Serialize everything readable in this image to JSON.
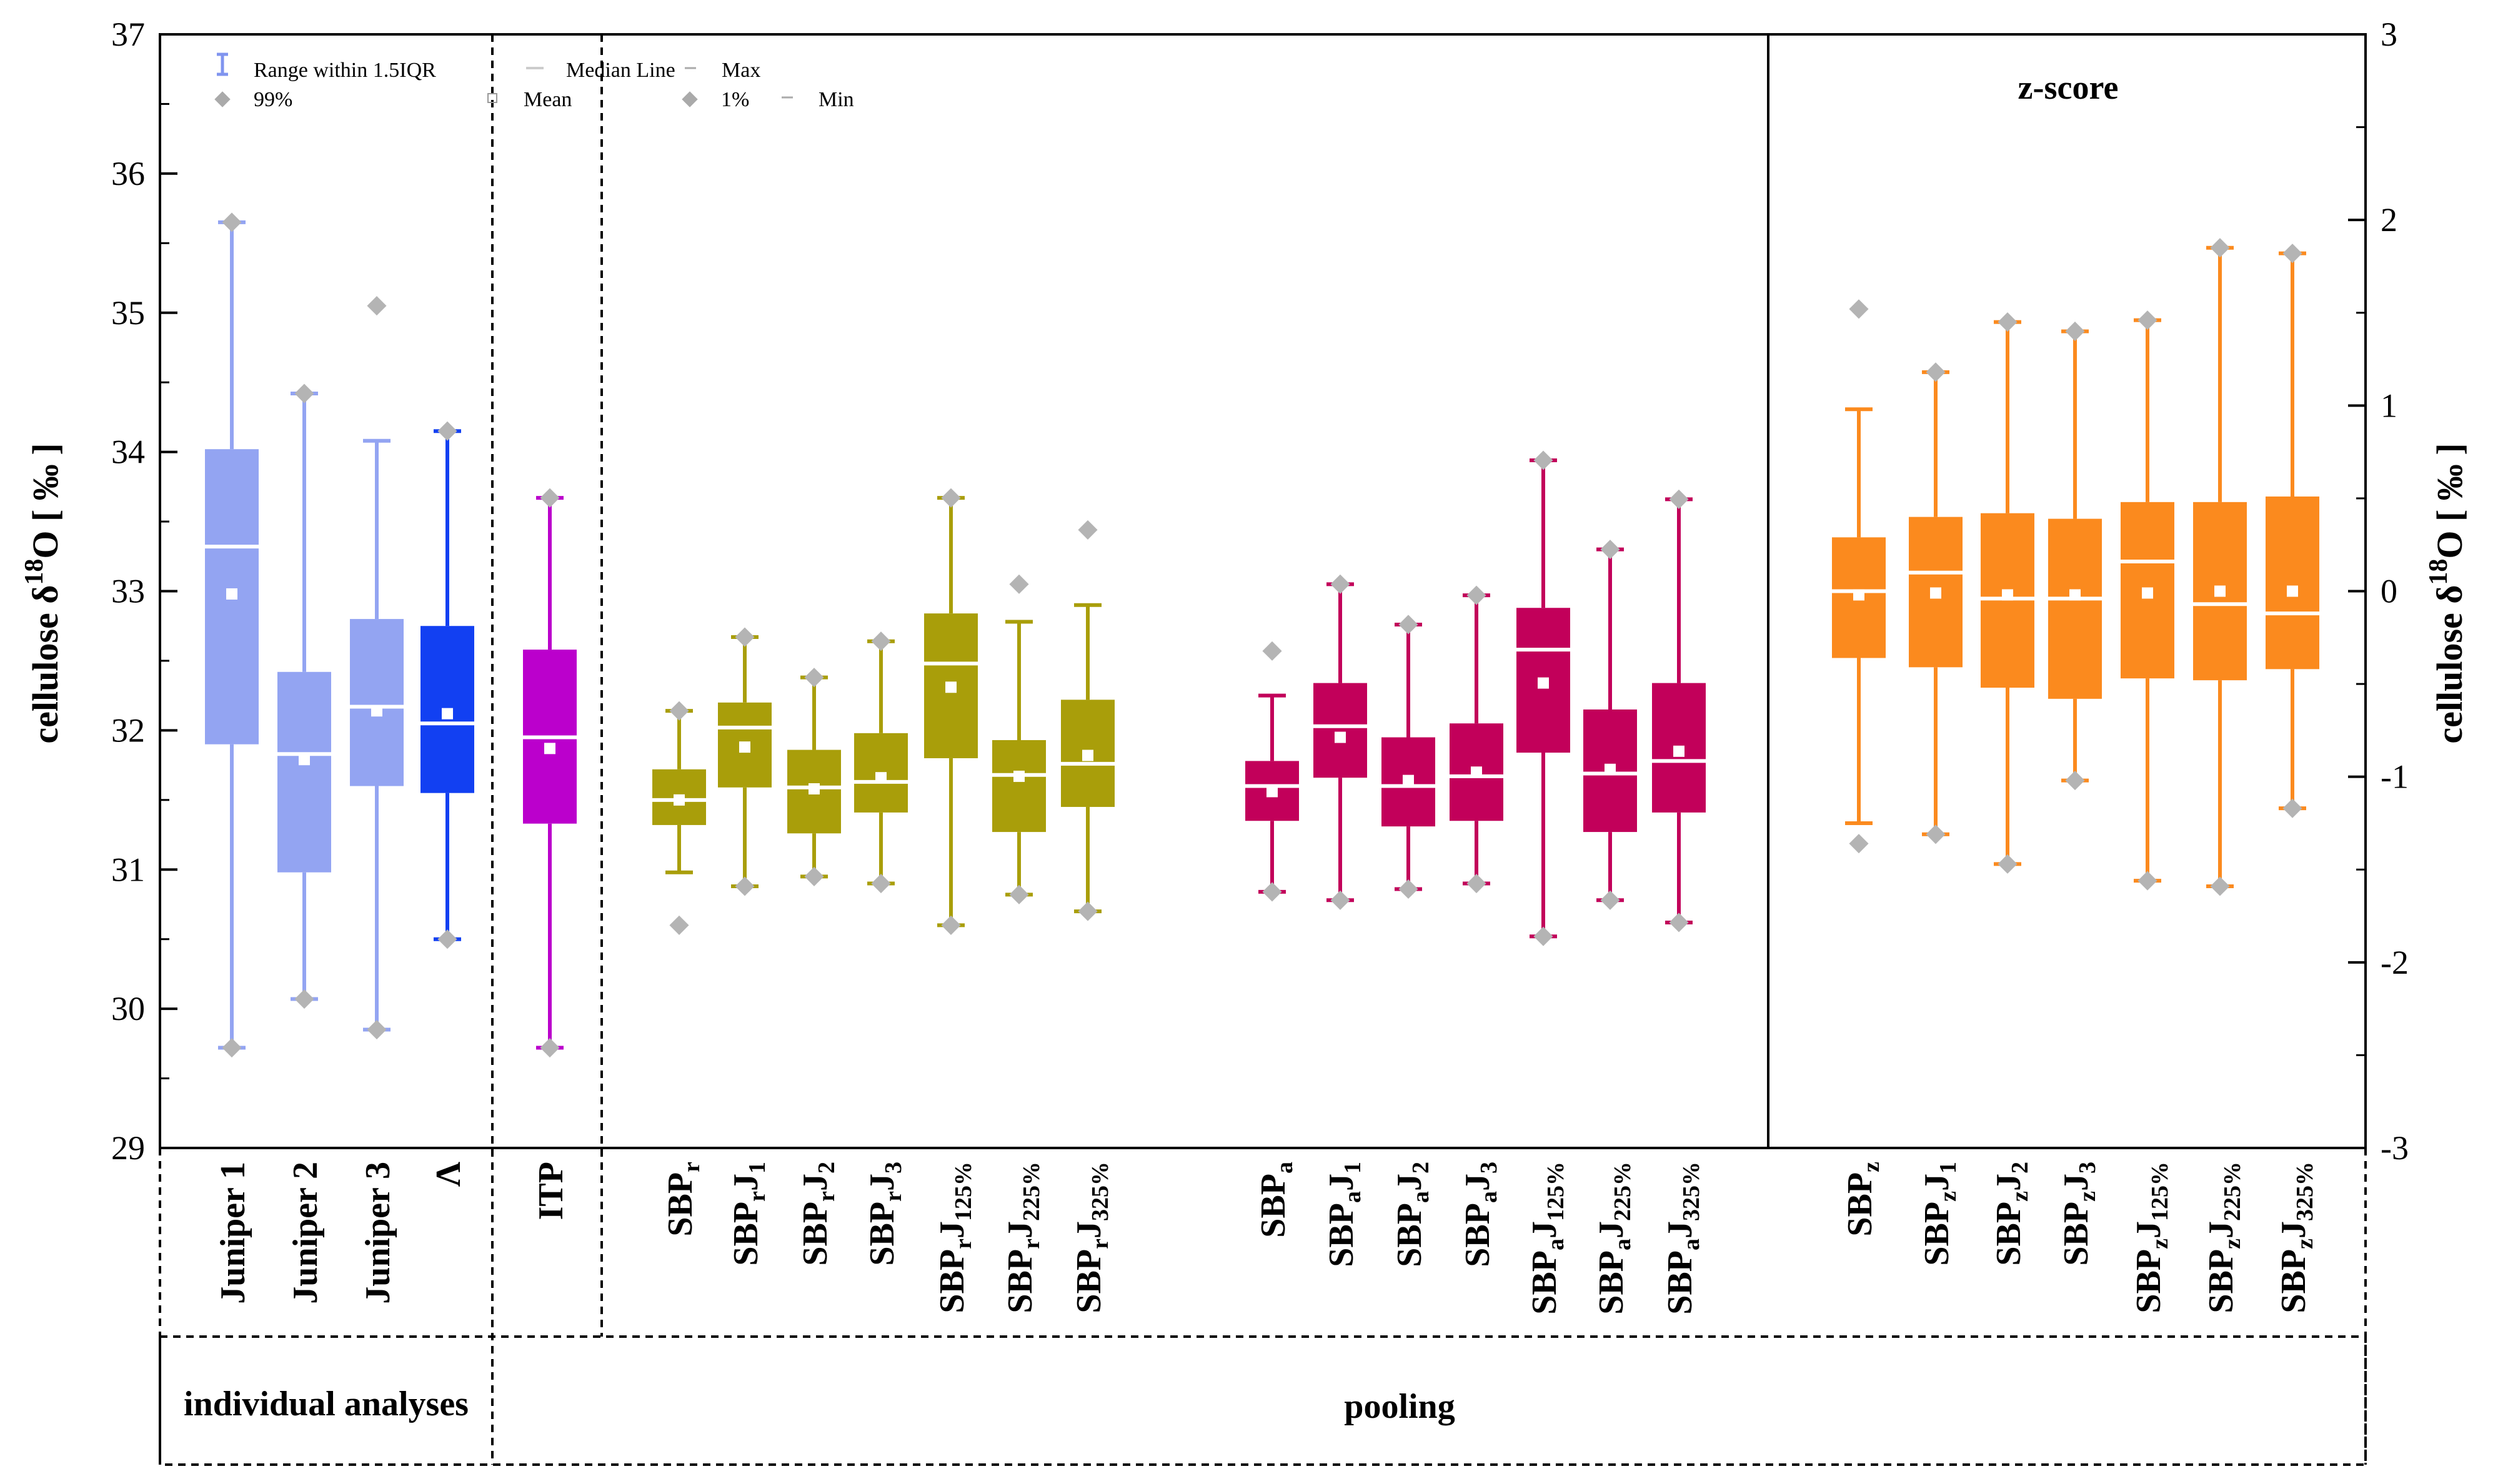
{
  "chart_data": {
    "type": "box",
    "title": "",
    "ylabel_left": {
      "main": "cellulose δ",
      "sup": "18",
      "tail": "O  [ ‰ ]"
    },
    "ylabel_right": {
      "main": "cellulose δ",
      "sup": "18",
      "tail": "O  [ ‰ ]"
    },
    "left_axis": {
      "ylim": [
        29,
        37
      ],
      "ticks": [
        "29",
        "30",
        "31",
        "32",
        "33",
        "34",
        "35",
        "36",
        "37"
      ]
    },
    "right_axis": {
      "ylim": [
        -3,
        3
      ],
      "ticks": [
        "-3",
        "-2",
        "-1",
        "0",
        "1",
        "2",
        "3"
      ]
    },
    "legend": [
      {
        "label": "Range within 1.5IQR",
        "symbol": "whisker"
      },
      {
        "label": "99%",
        "symbol": "diamond"
      },
      {
        "label": "Median Line",
        "symbol": "line"
      },
      {
        "label": "Mean",
        "symbol": "square"
      },
      {
        "label": "Max",
        "symbol": "dash"
      },
      {
        "label": "1%",
        "symbol": "diamond"
      },
      {
        "label": "Min",
        "symbol": "dash"
      }
    ],
    "panel_title": "z-score",
    "group_labels": {
      "individual": "individual analyses",
      "pooling": "pooling"
    },
    "series": [
      {
        "label": "Juniper 1",
        "color": "#93a4f2",
        "axis": "left",
        "q1": 31.9,
        "q3": 34.02,
        "median": 33.32,
        "mean": 32.98,
        "min": 29.72,
        "max": 35.65,
        "p1": 29.72,
        "p99": 35.65
      },
      {
        "label": "Juniper 2",
        "color": "#93a4f2",
        "axis": "left",
        "q1": 30.98,
        "q3": 32.42,
        "median": 31.83,
        "mean": 31.79,
        "min": 30.07,
        "max": 34.42,
        "p1": 30.07,
        "p99": 34.42
      },
      {
        "label": "Juniper 3",
        "color": "#93a4f2",
        "axis": "left",
        "q1": 31.6,
        "q3": 32.8,
        "median": 32.17,
        "mean": 32.14,
        "min": 29.85,
        "max": 34.08,
        "p1": 29.85,
        "p99": 35.05
      },
      {
        "label": "Λ",
        "color": "#1240f2",
        "axis": "left",
        "q1": 31.55,
        "q3": 32.75,
        "median": 32.05,
        "mean": 32.12,
        "min": 30.5,
        "max": 34.15,
        "p1": 30.5,
        "p99": 34.15
      },
      {
        "label": "ITP",
        "color": "#bb00cc",
        "axis": "left",
        "q1": 31.33,
        "q3": 32.58,
        "median": 31.95,
        "mean": 31.87,
        "min": 29.72,
        "max": 33.67,
        "p1": 29.72,
        "p99": 33.67
      },
      {
        "label": "SBPr",
        "sub": [
          "r"
        ],
        "color": "#a99e0a",
        "axis": "left",
        "q1": 31.32,
        "q3": 31.72,
        "median": 31.5,
        "mean": 31.5,
        "min": 30.98,
        "max": 32.14,
        "p1": 30.6,
        "p99": 32.14
      },
      {
        "label": "SBPrJ1",
        "sub": [
          "r",
          "1"
        ],
        "color": "#a99e0a",
        "axis": "left",
        "q1": 31.59,
        "q3": 32.2,
        "median": 32.02,
        "mean": 31.88,
        "min": 30.88,
        "max": 32.67,
        "p1": 30.88,
        "p99": 32.67
      },
      {
        "label": "SBPrJ2",
        "sub": [
          "r",
          "2"
        ],
        "color": "#a99e0a",
        "axis": "left",
        "q1": 31.26,
        "q3": 31.86,
        "median": 31.59,
        "mean": 31.58,
        "min": 30.95,
        "max": 32.38,
        "p1": 30.95,
        "p99": 32.38
      },
      {
        "label": "SBPrJ3",
        "sub": [
          "r",
          "3"
        ],
        "color": "#a99e0a",
        "axis": "left",
        "q1": 31.41,
        "q3": 31.98,
        "median": 31.63,
        "mean": 31.66,
        "min": 30.9,
        "max": 32.64,
        "p1": 30.9,
        "p99": 32.64
      },
      {
        "label": "SBPrJ125%",
        "sub": [
          "r",
          "125%"
        ],
        "color": "#a99e0a",
        "axis": "left",
        "q1": 31.8,
        "q3": 32.84,
        "median": 32.48,
        "mean": 32.31,
        "min": 30.6,
        "max": 33.67,
        "p1": 30.6,
        "p99": 33.67
      },
      {
        "label": "SBPrJ225%",
        "sub": [
          "r",
          "225%"
        ],
        "color": "#a99e0a",
        "axis": "left",
        "q1": 31.27,
        "q3": 31.93,
        "median": 31.68,
        "mean": 31.67,
        "min": 30.82,
        "max": 32.78,
        "p1": 30.82,
        "p99": 33.05
      },
      {
        "label": "SBPrJ325%",
        "sub": [
          "r",
          "325%"
        ],
        "color": "#a99e0a",
        "axis": "left",
        "q1": 31.45,
        "q3": 32.22,
        "median": 31.76,
        "mean": 31.82,
        "min": 30.7,
        "max": 32.9,
        "p1": 30.7,
        "p99": 33.44
      },
      {
        "label": "SBPa",
        "sub": [
          "a"
        ],
        "color": "#c2005a",
        "axis": "left",
        "q1": 31.35,
        "q3": 31.78,
        "median": 31.6,
        "mean": 31.56,
        "min": 30.84,
        "max": 32.25,
        "p1": 30.84,
        "p99": 32.57
      },
      {
        "label": "SBPaJ1",
        "sub": [
          "a",
          "1"
        ],
        "color": "#c2005a",
        "axis": "left",
        "q1": 31.66,
        "q3": 32.34,
        "median": 32.03,
        "mean": 31.95,
        "min": 30.78,
        "max": 33.05,
        "p1": 30.78,
        "p99": 33.05
      },
      {
        "label": "SBPaJ2",
        "sub": [
          "a",
          "2"
        ],
        "color": "#c2005a",
        "axis": "left",
        "q1": 31.31,
        "q3": 31.95,
        "median": 31.6,
        "mean": 31.64,
        "min": 30.86,
        "max": 32.76,
        "p1": 30.86,
        "p99": 32.76
      },
      {
        "label": "SBPaJ3",
        "sub": [
          "a",
          "3"
        ],
        "color": "#c2005a",
        "axis": "left",
        "q1": 31.35,
        "q3": 32.05,
        "median": 31.67,
        "mean": 31.7,
        "min": 30.9,
        "max": 32.97,
        "p1": 30.9,
        "p99": 32.97
      },
      {
        "label": "SBPaJ125%",
        "sub": [
          "a",
          "125%"
        ],
        "color": "#c2005a",
        "axis": "left",
        "q1": 31.84,
        "q3": 32.88,
        "median": 32.58,
        "mean": 32.34,
        "min": 30.52,
        "max": 33.94,
        "p1": 30.52,
        "p99": 33.94
      },
      {
        "label": "SBPaJ225%",
        "sub": [
          "a",
          "225%"
        ],
        "color": "#c2005a",
        "axis": "left",
        "q1": 31.27,
        "q3": 32.15,
        "median": 31.69,
        "mean": 31.72,
        "min": 30.78,
        "max": 33.3,
        "p1": 30.78,
        "p99": 33.3
      },
      {
        "label": "SBPaJ325%",
        "sub": [
          "a",
          "325%"
        ],
        "color": "#c2005a",
        "axis": "left",
        "q1": 31.41,
        "q3": 32.34,
        "median": 31.78,
        "mean": 31.85,
        "min": 30.62,
        "max": 33.66,
        "p1": 30.62,
        "p99": 33.66
      },
      {
        "label": "SBPz",
        "sub": [
          "z"
        ],
        "color": "#fb8a1e",
        "axis": "right",
        "q1": -0.36,
        "q3": 0.29,
        "median": 0.0,
        "mean": -0.02,
        "min": -1.25,
        "max": 0.98,
        "p1": -1.36,
        "p99": 1.52
      },
      {
        "label": "SBPzJ1",
        "sub": [
          "z",
          "1"
        ],
        "color": "#fb8a1e",
        "axis": "right",
        "q1": -0.41,
        "q3": 0.4,
        "median": 0.1,
        "mean": -0.01,
        "min": -1.31,
        "max": 1.18,
        "p1": -1.31,
        "p99": 1.18
      },
      {
        "label": "SBPzJ2",
        "sub": [
          "z",
          "2"
        ],
        "color": "#fb8a1e",
        "axis": "right",
        "q1": -0.52,
        "q3": 0.42,
        "median": -0.04,
        "mean": -0.02,
        "min": -1.47,
        "max": 1.45,
        "p1": -1.47,
        "p99": 1.45
      },
      {
        "label": "SBPzJ3",
        "sub": [
          "z",
          "3"
        ],
        "color": "#fb8a1e",
        "axis": "right",
        "q1": -0.58,
        "q3": 0.39,
        "median": -0.04,
        "mean": -0.02,
        "min": -1.02,
        "max": 1.4,
        "p1": -1.02,
        "p99": 1.4
      },
      {
        "label": "SBPzJ125%",
        "sub": [
          "z",
          "125%"
        ],
        "color": "#fb8a1e",
        "axis": "right",
        "q1": -0.47,
        "q3": 0.48,
        "median": 0.16,
        "mean": -0.01,
        "min": -1.56,
        "max": 1.46,
        "p1": -1.56,
        "p99": 1.46
      },
      {
        "label": "SBPzJ225%",
        "sub": [
          "z",
          "225%"
        ],
        "color": "#fb8a1e",
        "axis": "right",
        "q1": -0.48,
        "q3": 0.48,
        "median": -0.07,
        "mean": 0.0,
        "min": -1.59,
        "max": 1.85,
        "p1": -1.59,
        "p99": 1.85
      },
      {
        "label": "SBPzJ325%",
        "sub": [
          "z",
          "325%"
        ],
        "color": "#fb8a1e",
        "axis": "right",
        "q1": -0.42,
        "q3": 0.51,
        "median": -0.12,
        "mean": 0.0,
        "min": -1.17,
        "max": 1.82,
        "p1": -1.17,
        "p99": 1.82
      }
    ]
  }
}
